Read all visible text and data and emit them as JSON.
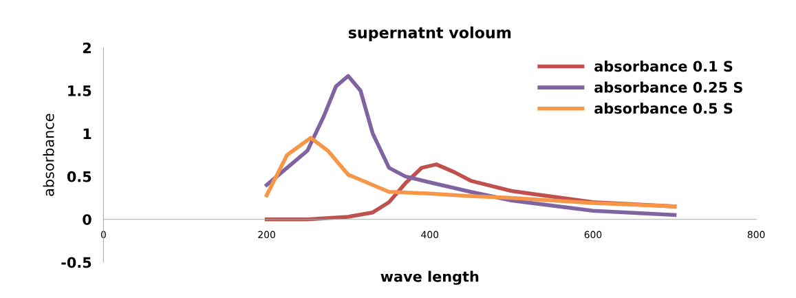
{
  "chart_data": {
    "type": "line",
    "title": "supernatnt voloum",
    "xlabel": "wave length",
    "ylabel": "absorbance",
    "xlim": [
      0,
      800
    ],
    "xticks": [
      0,
      200,
      400,
      600,
      800
    ],
    "ylim": [
      -0.5,
      2
    ],
    "yticks": [
      -0.5,
      0,
      0.5,
      1,
      1.5,
      2
    ],
    "grid": false,
    "legend": "top right",
    "marker": "none",
    "line_style": "solid",
    "series": [
      {
        "name": "absorbance 0.1 S",
        "color": "#c0504d",
        "x": [
          200,
          250,
          300,
          330,
          350,
          370,
          390,
          408,
          430,
          450,
          500,
          600,
          700
        ],
        "values": [
          0,
          0,
          0.03,
          0.08,
          0.2,
          0.42,
          0.6,
          0.64,
          0.55,
          0.45,
          0.33,
          0.2,
          0.15
        ]
      },
      {
        "name": "absorbance 0.25 S",
        "color": "#8064a2",
        "x": [
          200,
          250,
          270,
          285,
          300,
          315,
          330,
          350,
          370,
          400,
          450,
          500,
          600,
          700
        ],
        "values": [
          0.4,
          0.8,
          1.2,
          1.55,
          1.67,
          1.5,
          1.0,
          0.6,
          0.5,
          0.43,
          0.32,
          0.22,
          0.1,
          0.05
        ]
      },
      {
        "name": "absorbance 0.5 S",
        "color": "#f79646",
        "x": [
          200,
          225,
          254,
          275,
          300,
          350,
          400,
          450,
          500,
          600,
          700
        ],
        "values": [
          0.28,
          0.75,
          0.95,
          0.8,
          0.52,
          0.32,
          0.3,
          0.27,
          0.25,
          0.19,
          0.15
        ]
      }
    ]
  }
}
